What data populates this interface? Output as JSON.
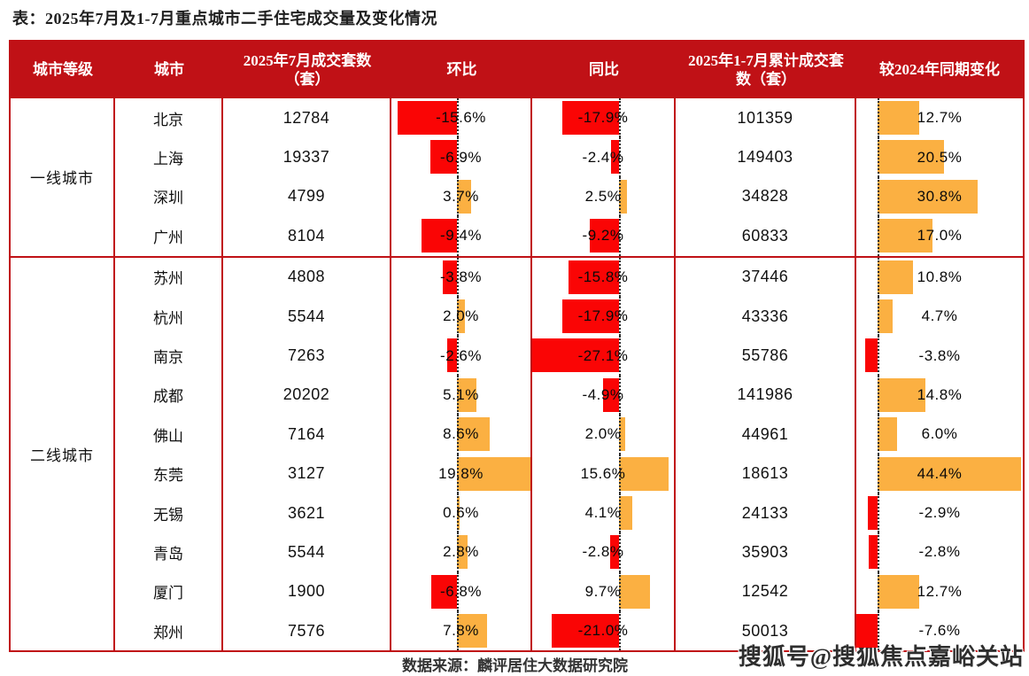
{
  "colors": {
    "header_bg": "#C01116",
    "border": "#C01116",
    "bar_negative": "#FA0505",
    "bar_positive": "#FBB042"
  },
  "chart_data": {
    "type": "table",
    "title": "表：2025年7月及1-7月重点城市二手住宅成交量及变化情况",
    "columns": [
      "城市等级",
      "城市",
      "2025年7月成交套数（套）",
      "环比",
      "同比",
      "2025年1-7月累计成交套数（套）",
      "较2024年同期变化"
    ],
    "bar_columns_note": "环比 / 同比 / 较2024年同期变化 are in-cell diverging bar charts; negative = red bars left of dotted zero axis, positive = orange bars right of dotted zero axis",
    "bar_axis_ranges": {
      "mom_pct": [
        -17,
        20
      ],
      "yoy_pct": [
        -27.5,
        17.5
      ],
      "vs2024_pct": [
        -7.6,
        44.4
      ]
    },
    "tiers": [
      {
        "label": "一线城市",
        "rows": [
          {
            "city": "北京",
            "jul_units": 12784,
            "mom_pct": -15.6,
            "yoy_pct": -17.9,
            "cum_units": 101359,
            "vs2024_pct": 12.7
          },
          {
            "city": "上海",
            "jul_units": 19337,
            "mom_pct": -6.9,
            "yoy_pct": -2.4,
            "cum_units": 149403,
            "vs2024_pct": 20.5
          },
          {
            "city": "深圳",
            "jul_units": 4799,
            "mom_pct": 3.7,
            "yoy_pct": 2.5,
            "cum_units": 34828,
            "vs2024_pct": 30.8
          },
          {
            "city": "广州",
            "jul_units": 8104,
            "mom_pct": -9.4,
            "yoy_pct": -9.2,
            "cum_units": 60833,
            "vs2024_pct": 17.0
          }
        ]
      },
      {
        "label": "二线城市",
        "rows": [
          {
            "city": "苏州",
            "jul_units": 4808,
            "mom_pct": -3.8,
            "yoy_pct": -15.8,
            "cum_units": 37446,
            "vs2024_pct": 10.8
          },
          {
            "city": "杭州",
            "jul_units": 5544,
            "mom_pct": 2.0,
            "yoy_pct": -17.9,
            "cum_units": 43336,
            "vs2024_pct": 4.7
          },
          {
            "city": "南京",
            "jul_units": 7263,
            "mom_pct": -2.6,
            "yoy_pct": -27.1,
            "cum_units": 55786,
            "vs2024_pct": -3.8
          },
          {
            "city": "成都",
            "jul_units": 20202,
            "mom_pct": 5.1,
            "yoy_pct": -4.9,
            "cum_units": 141986,
            "vs2024_pct": 14.8
          },
          {
            "city": "佛山",
            "jul_units": 7164,
            "mom_pct": 8.6,
            "yoy_pct": 2.0,
            "cum_units": 44961,
            "vs2024_pct": 6.0
          },
          {
            "city": "东莞",
            "jul_units": 3127,
            "mom_pct": 19.8,
            "yoy_pct": 15.6,
            "cum_units": 18613,
            "vs2024_pct": 44.4
          },
          {
            "city": "无锡",
            "jul_units": 3621,
            "mom_pct": 0.6,
            "yoy_pct": 4.1,
            "cum_units": 24133,
            "vs2024_pct": -2.9
          },
          {
            "city": "青岛",
            "jul_units": 5544,
            "mom_pct": 2.8,
            "yoy_pct": -2.8,
            "cum_units": 35903,
            "vs2024_pct": -2.8
          },
          {
            "city": "厦门",
            "jul_units": 1900,
            "mom_pct": -6.8,
            "yoy_pct": 9.7,
            "cum_units": 12542,
            "vs2024_pct": 12.7
          },
          {
            "city": "郑州",
            "jul_units": 7576,
            "mom_pct": 7.8,
            "yoy_pct": -21.0,
            "cum_units": 50013,
            "vs2024_pct": -7.6
          }
        ]
      }
    ]
  },
  "footer": {
    "source": "数据来源：麟评居住大数据研究院",
    "watermark": "搜狐号@搜狐焦点嘉峪关站"
  }
}
